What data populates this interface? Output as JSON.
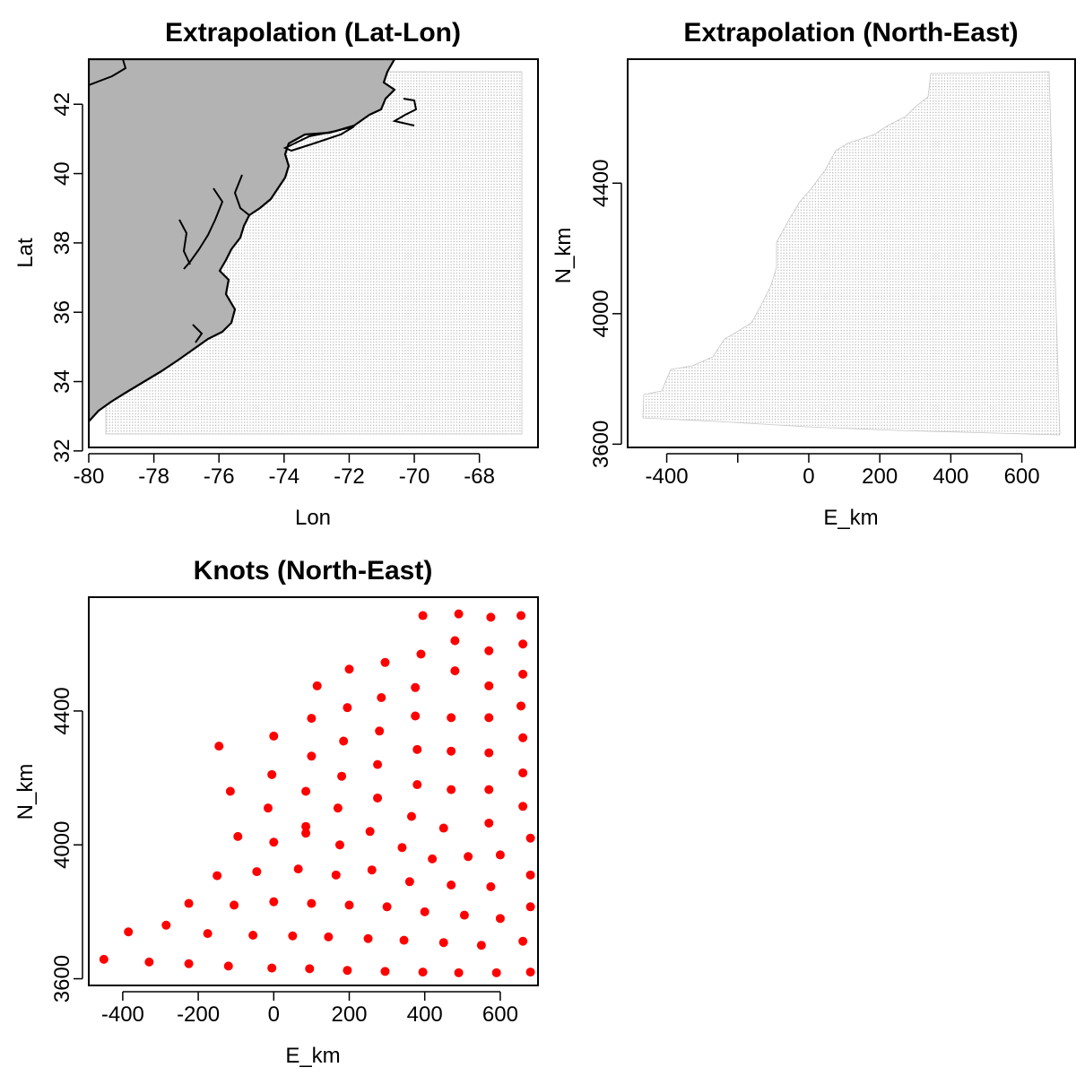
{
  "colors": {
    "knot": "#ff0000",
    "land": "#b3b3b3",
    "grid": "#bdbdbd"
  },
  "chart_data": [
    {
      "type": "map",
      "title": "Extrapolation (Lat-Lon)",
      "xlabel": "Lon",
      "ylabel": "Lat",
      "xlim": [
        -80,
        -66.2
      ],
      "ylim": [
        32.1,
        43.3
      ],
      "xticks": [
        -80,
        -78,
        -76,
        -74,
        -72,
        -70,
        -68
      ],
      "yticks": [
        32,
        34,
        36,
        38,
        40,
        42
      ],
      "grid_extent": {
        "lon": [
          -79.7,
          -66.7
        ],
        "lat": [
          32.2,
          42.8
        ]
      },
      "land": "coastline (US East Coast)"
    },
    {
      "type": "scatter",
      "title": "Extrapolation (North-East)",
      "xlabel": "E_km",
      "ylabel": "N_km",
      "xlim": [
        -510,
        750
      ],
      "ylim": [
        3590,
        4780
      ],
      "xticks": [
        -400,
        -200,
        0,
        200,
        400,
        600
      ],
      "xtick_labels": [
        "-400",
        "",
        "0",
        "200",
        "400",
        "600"
      ],
      "yticks": [
        3600,
        4000,
        4400
      ],
      "marker": "small grey dots (dense extrapolation grid)"
    },
    {
      "type": "scatter",
      "title": "Knots (North-East)",
      "xlabel": "E_km",
      "ylabel": "N_km",
      "xlim": [
        -490,
        700
      ],
      "ylim": [
        3580,
        4740
      ],
      "xticks": [
        -400,
        -200,
        0,
        200,
        400,
        600
      ],
      "yticks": [
        3600,
        4000,
        4400
      ],
      "points": [
        [
          -450,
          3658
        ],
        [
          -330,
          3650
        ],
        [
          -225,
          3645
        ],
        [
          -120,
          3638
        ],
        [
          -5,
          3632
        ],
        [
          95,
          3630
        ],
        [
          195,
          3625
        ],
        [
          295,
          3622
        ],
        [
          395,
          3620
        ],
        [
          490,
          3618
        ],
        [
          590,
          3618
        ],
        [
          680,
          3620
        ],
        [
          -385,
          3740
        ],
        [
          -285,
          3760
        ],
        [
          -175,
          3735
        ],
        [
          -55,
          3730
        ],
        [
          50,
          3728
        ],
        [
          145,
          3725
        ],
        [
          250,
          3720
        ],
        [
          345,
          3715
        ],
        [
          450,
          3708
        ],
        [
          550,
          3700
        ],
        [
          660,
          3712
        ],
        [
          -225,
          3825
        ],
        [
          -105,
          3820
        ],
        [
          0,
          3830
        ],
        [
          100,
          3825
        ],
        [
          200,
          3820
        ],
        [
          300,
          3815
        ],
        [
          400,
          3800
        ],
        [
          505,
          3790
        ],
        [
          600,
          3780
        ],
        [
          680,
          3815
        ],
        [
          -150,
          3908
        ],
        [
          -45,
          3920
        ],
        [
          65,
          3928
        ],
        [
          165,
          3910
        ],
        [
          260,
          3925
        ],
        [
          360,
          3890
        ],
        [
          470,
          3880
        ],
        [
          575,
          3875
        ],
        [
          680,
          3910
        ],
        [
          -95,
          4025
        ],
        [
          0,
          4008
        ],
        [
          85,
          4035
        ],
        [
          175,
          4000
        ],
        [
          255,
          4040
        ],
        [
          340,
          3992
        ],
        [
          420,
          3958
        ],
        [
          515,
          3965
        ],
        [
          600,
          3970
        ],
        [
          680,
          4020
        ],
        [
          -115,
          4160
        ],
        [
          -15,
          4110
        ],
        [
          85,
          4055
        ],
        [
          170,
          4110
        ],
        [
          275,
          4140
        ],
        [
          365,
          4085
        ],
        [
          450,
          4050
        ],
        [
          570,
          4065
        ],
        [
          660,
          4115
        ],
        [
          -145,
          4295
        ],
        [
          -5,
          4210
        ],
        [
          85,
          4160
        ],
        [
          180,
          4205
        ],
        [
          275,
          4240
        ],
        [
          380,
          4180
        ],
        [
          470,
          4165
        ],
        [
          570,
          4165
        ],
        [
          660,
          4215
        ],
        [
          0,
          4325
        ],
        [
          100,
          4265
        ],
        [
          185,
          4310
        ],
        [
          280,
          4340
        ],
        [
          380,
          4285
        ],
        [
          470,
          4280
        ],
        [
          570,
          4275
        ],
        [
          660,
          4320
        ],
        [
          100,
          4378
        ],
        [
          195,
          4410
        ],
        [
          285,
          4440
        ],
        [
          375,
          4385
        ],
        [
          470,
          4380
        ],
        [
          570,
          4380
        ],
        [
          655,
          4415
        ],
        [
          115,
          4475
        ],
        [
          200,
          4525
        ],
        [
          295,
          4545
        ],
        [
          375,
          4470
        ],
        [
          480,
          4520
        ],
        [
          570,
          4475
        ],
        [
          660,
          4510
        ],
        [
          390,
          4570
        ],
        [
          480,
          4610
        ],
        [
          570,
          4580
        ],
        [
          660,
          4600
        ],
        [
          395,
          4685
        ],
        [
          490,
          4690
        ],
        [
          575,
          4680
        ],
        [
          655,
          4685
        ]
      ]
    }
  ]
}
